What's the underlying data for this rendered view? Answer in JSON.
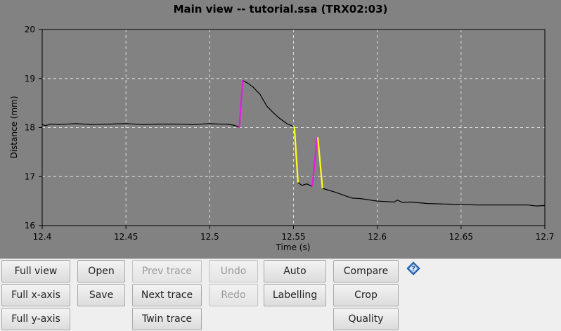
{
  "window": {
    "title": "Main view -- tutorial.ssa (TRX02:03)"
  },
  "chart_data": {
    "type": "line",
    "title": "Main view -- tutorial.ssa (TRX02:03)",
    "xlabel": "Time (s)",
    "ylabel": "Distance (mm)",
    "xlim": [
      12.4,
      12.7
    ],
    "ylim": [
      16,
      20
    ],
    "xticks": [
      12.4,
      12.45,
      12.5,
      12.55,
      12.6,
      12.65,
      12.7
    ],
    "xtick_labels": [
      "12.4",
      "12.45",
      "12.5",
      "12.55",
      "12.6",
      "12.65",
      "12.7"
    ],
    "yticks": [
      16,
      17,
      18,
      19,
      20
    ],
    "ytick_labels": [
      "16",
      "17",
      "18",
      "19",
      "20"
    ],
    "grid": true,
    "colors": {
      "background": "#828282",
      "trace": "#000000",
      "rise_marker": "#e619e6",
      "fall_marker": "#ffff1a",
      "grid": "#dddddd"
    },
    "series": [
      {
        "x": [
          12.4,
          12.402,
          12.405,
          12.41,
          12.42,
          12.43,
          12.44,
          12.45,
          12.46,
          12.47,
          12.48,
          12.49,
          12.5,
          12.505,
          12.51,
          12.514,
          12.517,
          12.518
        ],
        "y": [
          18.06,
          18.04,
          18.07,
          18.06,
          18.08,
          18.06,
          18.07,
          18.08,
          18.06,
          18.07,
          18.07,
          18.06,
          18.08,
          18.07,
          18.07,
          18.05,
          18.02,
          18.0
        ]
      },
      {
        "x": [
          12.5197,
          12.523,
          12.526,
          12.53,
          12.534,
          12.538,
          12.542,
          12.546,
          12.55
        ],
        "y": [
          18.96,
          18.9,
          18.82,
          18.68,
          18.44,
          18.3,
          18.18,
          18.08,
          18.02
        ]
      },
      {
        "x": [
          12.5527,
          12.555,
          12.558,
          12.5612
        ],
        "y": [
          16.88,
          16.82,
          16.85,
          16.8
        ]
      },
      {
        "x": [
          12.5673,
          12.575,
          12.58,
          12.585,
          12.59,
          12.6,
          12.61,
          12.612,
          12.615,
          12.62,
          12.63,
          12.64,
          12.65,
          12.66,
          12.67,
          12.68,
          12.69,
          12.695,
          12.7
        ],
        "y": [
          16.76,
          16.68,
          16.62,
          16.56,
          16.55,
          16.5,
          16.48,
          16.52,
          16.47,
          16.48,
          16.45,
          16.44,
          16.43,
          16.42,
          16.42,
          16.42,
          16.42,
          16.4,
          16.41
        ]
      }
    ],
    "markers": [
      {
        "kind": "rise",
        "x1": 12.5176,
        "y1": 18.0,
        "x2": 12.5197,
        "y2": 18.96
      },
      {
        "kind": "fall",
        "x1": 12.5505,
        "y1": 18.02,
        "x2": 12.5527,
        "y2": 16.88
      },
      {
        "kind": "rise",
        "x1": 12.5612,
        "y1": 16.8,
        "x2": 12.5641,
        "y2": 17.8
      },
      {
        "kind": "fall",
        "x1": 12.5645,
        "y1": 17.8,
        "x2": 12.5673,
        "y2": 16.76
      }
    ]
  },
  "buttons": {
    "full_view": "Full view",
    "full_x_axis": "Full x-axis",
    "full_y_axis": "Full y-axis",
    "open": "Open",
    "save": "Save",
    "prev_trace": "Prev trace",
    "next_trace": "Next trace",
    "twin_trace": "Twin trace",
    "undo": "Undo",
    "redo": "Redo",
    "auto": "Auto",
    "labelling": "Labelling",
    "compare": "Compare",
    "crop": "Crop",
    "quality": "Quality"
  },
  "icons": {
    "help": "help-icon"
  }
}
